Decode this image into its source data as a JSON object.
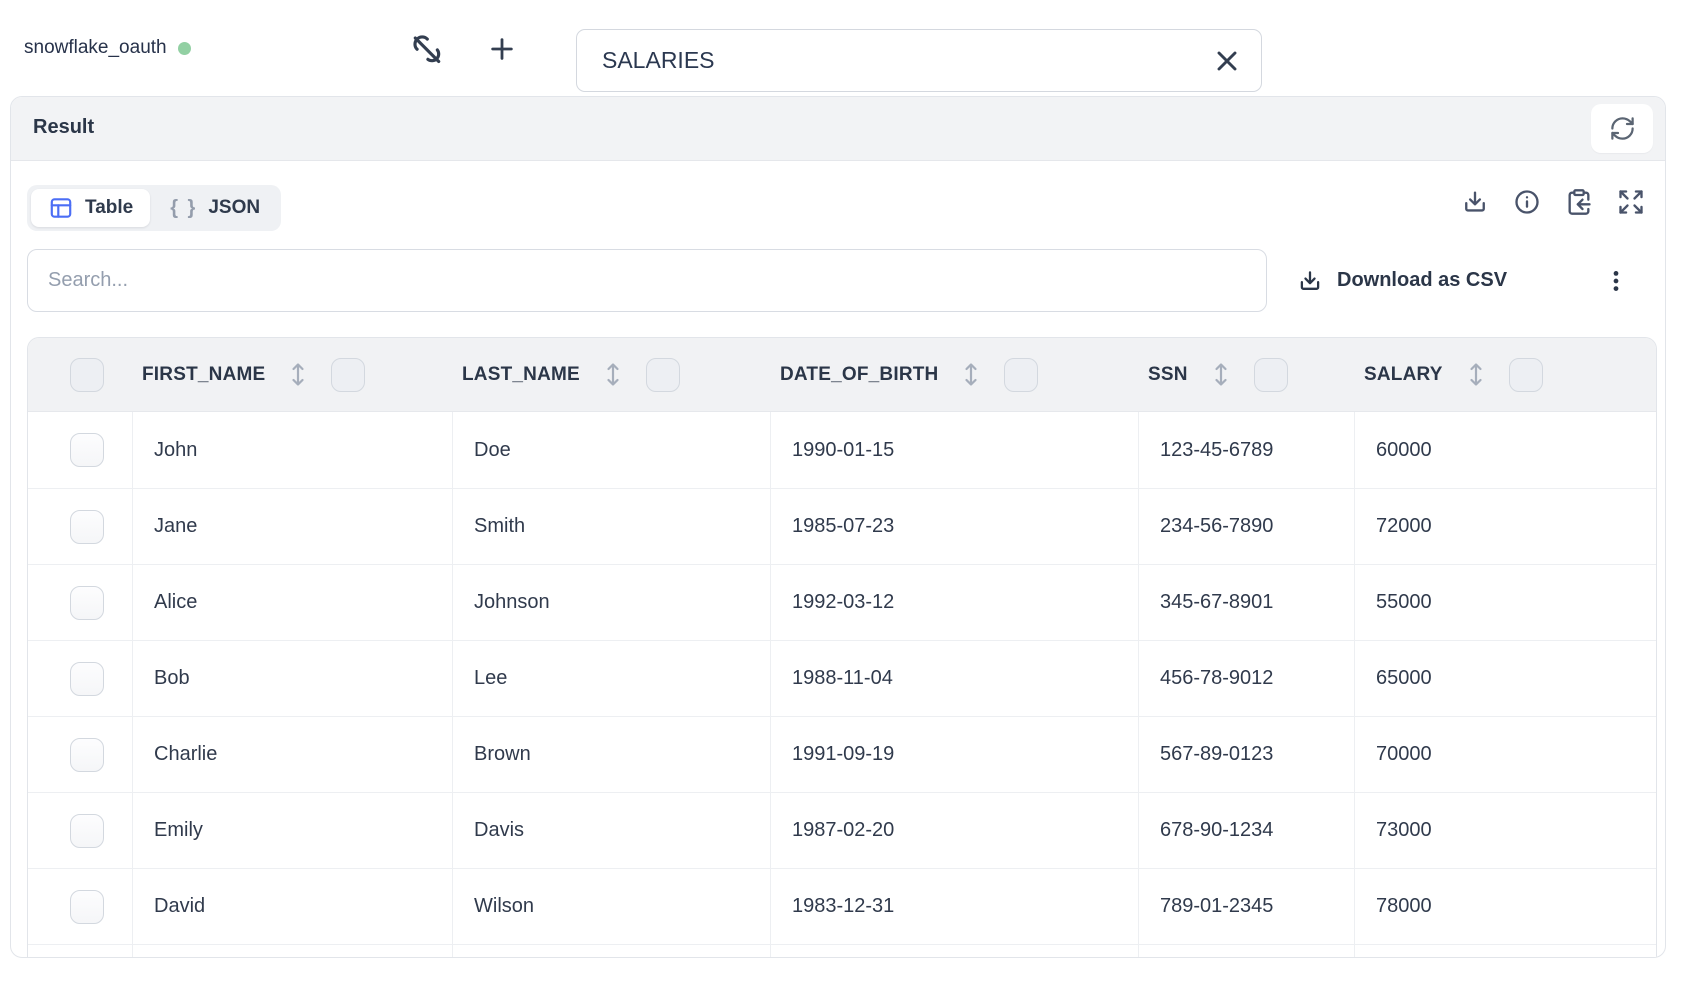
{
  "topbar": {
    "connection": {
      "name": "snowflake_oauth",
      "status": "connected",
      "status_color": "#92d0a3",
      "disconnect_icon": "link-off-icon",
      "add_icon": "plus-icon"
    },
    "table_name_input": {
      "value": "SALARIES",
      "clear_icon": "x-icon"
    }
  },
  "result_panel": {
    "title": "Result",
    "refresh_icon": "refresh-icon"
  },
  "view_switch": {
    "tabs": [
      {
        "label": "Table",
        "icon": "table-icon",
        "active": true
      },
      {
        "label": "JSON",
        "icon": "braces-icon",
        "glyph": "{ }",
        "active": false
      }
    ]
  },
  "result_actions": {
    "icons": [
      "download-icon",
      "info-icon",
      "clipboard-copy-icon",
      "expand-icon"
    ]
  },
  "filter": {
    "search_placeholder": "Search..."
  },
  "export": {
    "download_csv_label": "Download as CSV",
    "download_icon": "download-icon",
    "more_menu_icon": "kebab-menu-icon"
  },
  "data_table": {
    "columns": [
      "FIRST_NAME",
      "LAST_NAME",
      "DATE_OF_BIRTH",
      "SSN",
      "SALARY"
    ],
    "rows": [
      [
        "John",
        "Doe",
        "1990-01-15",
        "123-45-6789",
        "60000"
      ],
      [
        "Jane",
        "Smith",
        "1985-07-23",
        "234-56-7890",
        "72000"
      ],
      [
        "Alice",
        "Johnson",
        "1992-03-12",
        "345-67-8901",
        "55000"
      ],
      [
        "Bob",
        "Lee",
        "1988-11-04",
        "456-78-9012",
        "65000"
      ],
      [
        "Charlie",
        "Brown",
        "1991-09-19",
        "567-89-0123",
        "70000"
      ],
      [
        "Emily",
        "Davis",
        "1987-02-20",
        "678-90-1234",
        "73000"
      ],
      [
        "David",
        "Wilson",
        "1983-12-31",
        "789-01-2345",
        "78000"
      ]
    ]
  },
  "colors": {
    "accent_blue": "#4c6ef5",
    "status_green": "#92d0a3",
    "text_dark": "#2b3648",
    "panel_border": "#e2e5ea",
    "table_header_bg": "#f1f2f4"
  }
}
